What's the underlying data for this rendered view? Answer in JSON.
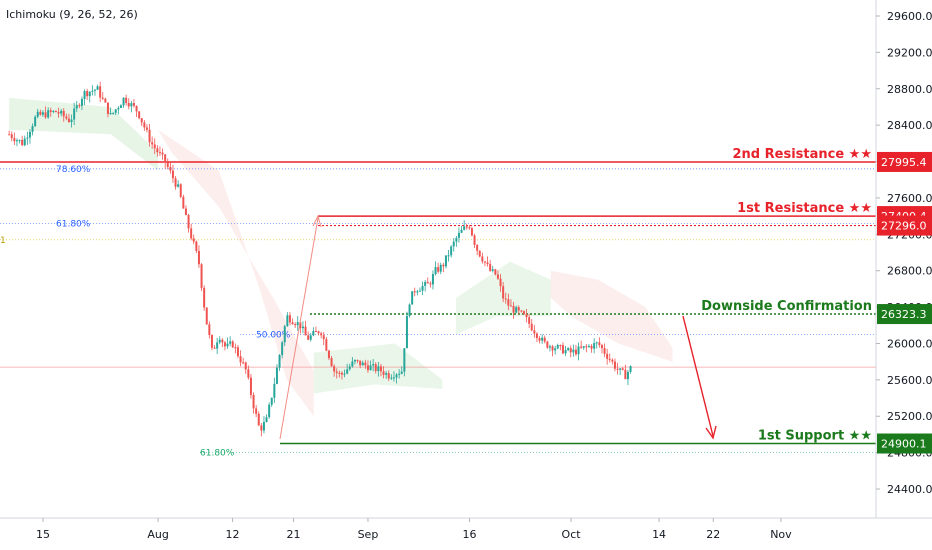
{
  "indicator_label": "Ichimoku (9, 26, 52, 26)",
  "chart_data": {
    "type": "line",
    "ylim": [
      24000,
      29800
    ],
    "y_ticks": [
      24400,
      24800,
      25200,
      25600,
      26000,
      26400,
      26800,
      27200,
      27600,
      28000,
      28400,
      28800,
      29200,
      29600
    ],
    "y_tick_labels": [
      "24400.0",
      "24800.0",
      "25200.0",
      "25600.0",
      "26000.0",
      "26400.0",
      "26800.0",
      "27200.0",
      "27600.0",
      "28000.0",
      "28400.0",
      "28800.0",
      "29200.0",
      "29600.0"
    ],
    "x_tick_labels": [
      "15",
      "Aug",
      "12",
      "21",
      "Sep",
      "16",
      "Oct",
      "14",
      "22",
      "Nov"
    ],
    "x_tick_dates": [
      "2023-07-15",
      "2023-08-01",
      "2023-08-12",
      "2023-08-21",
      "2023-09-01",
      "2023-09-16",
      "2023-10-01",
      "2023-10-14",
      "2023-10-22",
      "2023-11-01"
    ],
    "price_path": [
      [
        "2023-07-10",
        28300
      ],
      [
        "2023-07-12",
        28200
      ],
      [
        "2023-07-14",
        28500
      ],
      [
        "2023-07-17",
        28550
      ],
      [
        "2023-07-19",
        28450
      ],
      [
        "2023-07-21",
        28750
      ],
      [
        "2023-07-23",
        28800
      ],
      [
        "2023-07-25",
        28500
      ],
      [
        "2023-07-27",
        28700
      ],
      [
        "2023-07-29",
        28550
      ],
      [
        "2023-07-31",
        28200
      ],
      [
        "2023-08-02",
        28000
      ],
      [
        "2023-08-04",
        27700
      ],
      [
        "2023-08-05",
        27400
      ],
      [
        "2023-08-07",
        26900
      ],
      [
        "2023-08-08",
        26300
      ],
      [
        "2023-08-09",
        25900
      ],
      [
        "2023-08-10",
        26100
      ],
      [
        "2023-08-11",
        25950
      ],
      [
        "2023-08-12",
        26000
      ],
      [
        "2023-08-14",
        25700
      ],
      [
        "2023-08-15",
        25350
      ],
      [
        "2023-08-16",
        25050
      ],
      [
        "2023-08-17",
        25150
      ],
      [
        "2023-08-18",
        25500
      ],
      [
        "2023-08-19",
        25900
      ],
      [
        "2023-08-20",
        26300
      ],
      [
        "2023-08-21",
        26250
      ],
      [
        "2023-08-22",
        26200
      ],
      [
        "2023-08-23",
        26050
      ],
      [
        "2023-08-25",
        26150
      ],
      [
        "2023-08-27",
        25700
      ],
      [
        "2023-08-28",
        25650
      ],
      [
        "2023-08-30",
        25800
      ],
      [
        "2023-09-01",
        25750
      ],
      [
        "2023-09-03",
        25700
      ],
      [
        "2023-09-04",
        25650
      ],
      [
        "2023-09-06",
        25700
      ],
      [
        "2023-09-07",
        26450
      ],
      [
        "2023-09-08",
        26600
      ],
      [
        "2023-09-10",
        26650
      ],
      [
        "2023-09-11",
        26800
      ],
      [
        "2023-09-12",
        26850
      ],
      [
        "2023-09-13",
        27000
      ],
      [
        "2023-09-14",
        27150
      ],
      [
        "2023-09-15",
        27250
      ],
      [
        "2023-09-16",
        27300
      ],
      [
        "2023-09-17",
        27050
      ],
      [
        "2023-09-19",
        26800
      ],
      [
        "2023-09-20",
        26750
      ],
      [
        "2023-09-21",
        26500
      ],
      [
        "2023-09-22",
        26400
      ],
      [
        "2023-09-24",
        26300
      ],
      [
        "2023-09-25",
        26200
      ],
      [
        "2023-09-27",
        26000
      ],
      [
        "2023-09-29",
        25950
      ],
      [
        "2023-10-01",
        25900
      ],
      [
        "2023-10-03",
        25950
      ],
      [
        "2023-10-05",
        26000
      ],
      [
        "2023-10-07",
        25800
      ],
      [
        "2023-10-08",
        25700
      ],
      [
        "2023-10-09",
        25650
      ],
      [
        "2023-10-10",
        25750
      ]
    ],
    "levels": [
      {
        "name": "2nd Resistance ★★",
        "value": 27995.4,
        "badge": "27995.4",
        "color": "#e8222a"
      },
      {
        "name": "1st Resistance ★★",
        "value": 27400.4,
        "badge": "27400.4",
        "color": "#e8222a"
      },
      {
        "name": "",
        "value": 27296.0,
        "badge": "27296.0",
        "color": "#e8222a"
      },
      {
        "name": "Downside Confirmation",
        "value": 26323.3,
        "badge": "26323.3",
        "color": "#1b7a1b"
      },
      {
        "name": "1st Support ★★",
        "value": 24900.1,
        "badge": "24900.1",
        "color": "#1b7a1b"
      }
    ],
    "fib_labels": [
      {
        "label": "78.60%",
        "value": 27920,
        "color": "#2962ff"
      },
      {
        "label": "61.80%",
        "value": 27320,
        "color": "#2962ff"
      },
      {
        "label": "1",
        "value": 27140,
        "color": "#b8a000"
      },
      {
        "label": "50.00%",
        "value": 26100,
        "color": "#2962ff"
      },
      {
        "label": "61.80%",
        "value": 24800,
        "color": "#1aa86a"
      }
    ]
  }
}
